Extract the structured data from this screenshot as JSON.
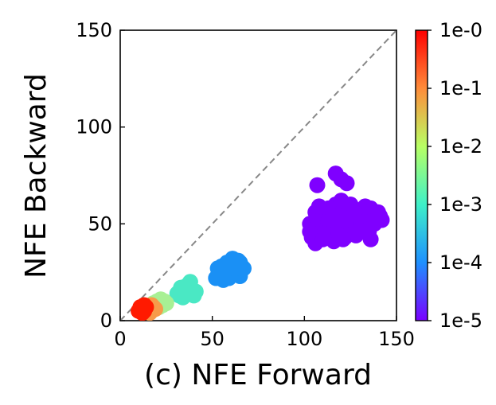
{
  "chart_data": {
    "type": "scatter",
    "title": "",
    "xlabel": "(c) NFE Forward",
    "ylabel": "NFE Backward",
    "xlim": [
      0,
      150
    ],
    "ylim": [
      0,
      150
    ],
    "x_ticks": [
      0,
      50,
      100,
      150
    ],
    "y_ticks": [
      0,
      50,
      100,
      150
    ],
    "grid": false,
    "reference_line": {
      "type": "y=x",
      "style": "dashed",
      "color": "#888888"
    },
    "colorbar": {
      "label": "",
      "scale": "log",
      "ticks": [
        "1e-0",
        "1e-1",
        "1e-2",
        "1e-3",
        "1e-4",
        "1e-5"
      ],
      "colormap": "rainbow",
      "colors": [
        "#ff0000",
        "#ff8c3a",
        "#b8ff64",
        "#3ef0c8",
        "#1e90ff",
        "#7a00ff"
      ]
    },
    "groups": [
      {
        "tolerance": "1e-5",
        "color": "#7f00ff",
        "points": [
          [
            104,
            43
          ],
          [
            106,
            40
          ],
          [
            108,
            46
          ],
          [
            110,
            42
          ],
          [
            112,
            48
          ],
          [
            114,
            44
          ],
          [
            116,
            41
          ],
          [
            118,
            50
          ],
          [
            120,
            46
          ],
          [
            122,
            43
          ],
          [
            124,
            49
          ],
          [
            126,
            45
          ],
          [
            103,
            50
          ],
          [
            107,
            52
          ],
          [
            111,
            55
          ],
          [
            115,
            53
          ],
          [
            119,
            57
          ],
          [
            123,
            54
          ],
          [
            127,
            51
          ],
          [
            130,
            48
          ],
          [
            132,
            52
          ],
          [
            134,
            55
          ],
          [
            136,
            58
          ],
          [
            138,
            53
          ],
          [
            140,
            56
          ],
          [
            142,
            52
          ],
          [
            113,
            58
          ],
          [
            117,
            60
          ],
          [
            121,
            57
          ],
          [
            125,
            60
          ],
          [
            129,
            57
          ],
          [
            133,
            59
          ],
          [
            105,
            47
          ],
          [
            109,
            49
          ],
          [
            113,
            51
          ],
          [
            117,
            47
          ],
          [
            121,
            50
          ],
          [
            125,
            47
          ],
          [
            128,
            44
          ],
          [
            131,
            50
          ],
          [
            135,
            46
          ],
          [
            118,
            45
          ],
          [
            110,
            45
          ],
          [
            116,
            52
          ],
          [
            122,
            52
          ],
          [
            130,
            54
          ],
          [
            106,
            56
          ],
          [
            108,
            59
          ],
          [
            120,
            62
          ],
          [
            127,
            56
          ],
          [
            136,
            42
          ],
          [
            138,
            50
          ],
          [
            117,
            76
          ],
          [
            123,
            71
          ],
          [
            107,
            70
          ],
          [
            120,
            73
          ],
          [
            119,
            44
          ],
          [
            121,
            42
          ],
          [
            103,
            46
          ],
          [
            141,
            54
          ]
        ]
      },
      {
        "tolerance": "1e-4",
        "color": "#1a90f5",
        "points": [
          [
            52,
            22
          ],
          [
            54,
            25
          ],
          [
            55,
            28
          ],
          [
            57,
            24
          ],
          [
            58,
            30
          ],
          [
            60,
            27
          ],
          [
            61,
            32
          ],
          [
            62,
            24
          ],
          [
            63,
            29
          ],
          [
            64,
            26
          ],
          [
            65,
            23
          ],
          [
            66,
            28
          ],
          [
            53,
            27
          ],
          [
            56,
            21
          ],
          [
            59,
            22
          ],
          [
            61,
            29
          ],
          [
            63,
            25
          ],
          [
            65,
            30
          ],
          [
            67,
            27
          ],
          [
            55,
            24
          ],
          [
            58,
            26
          ],
          [
            60,
            23
          ],
          [
            62,
            27
          ],
          [
            64,
            31
          ],
          [
            57,
            29
          ]
        ]
      },
      {
        "tolerance": "1e-3",
        "color": "#4ae8c4",
        "points": [
          [
            31,
            14
          ],
          [
            33,
            17
          ],
          [
            34,
            12
          ],
          [
            35,
            15
          ],
          [
            36,
            18
          ],
          [
            37,
            14
          ],
          [
            38,
            20
          ],
          [
            39,
            16
          ],
          [
            40,
            13
          ],
          [
            41,
            15
          ],
          [
            32,
            13
          ],
          [
            34,
            16
          ],
          [
            36,
            15
          ]
        ]
      },
      {
        "tolerance": "1e-2",
        "color": "#a8f094",
        "points": [
          [
            19,
            8
          ],
          [
            20,
            10
          ],
          [
            22,
            9
          ],
          [
            23,
            8
          ],
          [
            24,
            10
          ],
          [
            21,
            7
          ],
          [
            25,
            9
          ],
          [
            18,
            9
          ],
          [
            22,
            11
          ]
        ]
      },
      {
        "tolerance": "1e-1",
        "color": "#f79a4a",
        "points": [
          [
            15,
            6
          ],
          [
            16,
            7
          ],
          [
            17,
            5
          ],
          [
            18,
            7
          ],
          [
            19,
            6
          ],
          [
            16,
            4
          ],
          [
            17,
            8
          ]
        ]
      },
      {
        "tolerance": "1e-0",
        "color": "#ff1a00",
        "points": [
          [
            10,
            5
          ],
          [
            11,
            7
          ],
          [
            12,
            6
          ],
          [
            13,
            5
          ],
          [
            14,
            7
          ],
          [
            12,
            4
          ],
          [
            11,
            5
          ],
          [
            13,
            8
          ]
        ]
      }
    ]
  }
}
